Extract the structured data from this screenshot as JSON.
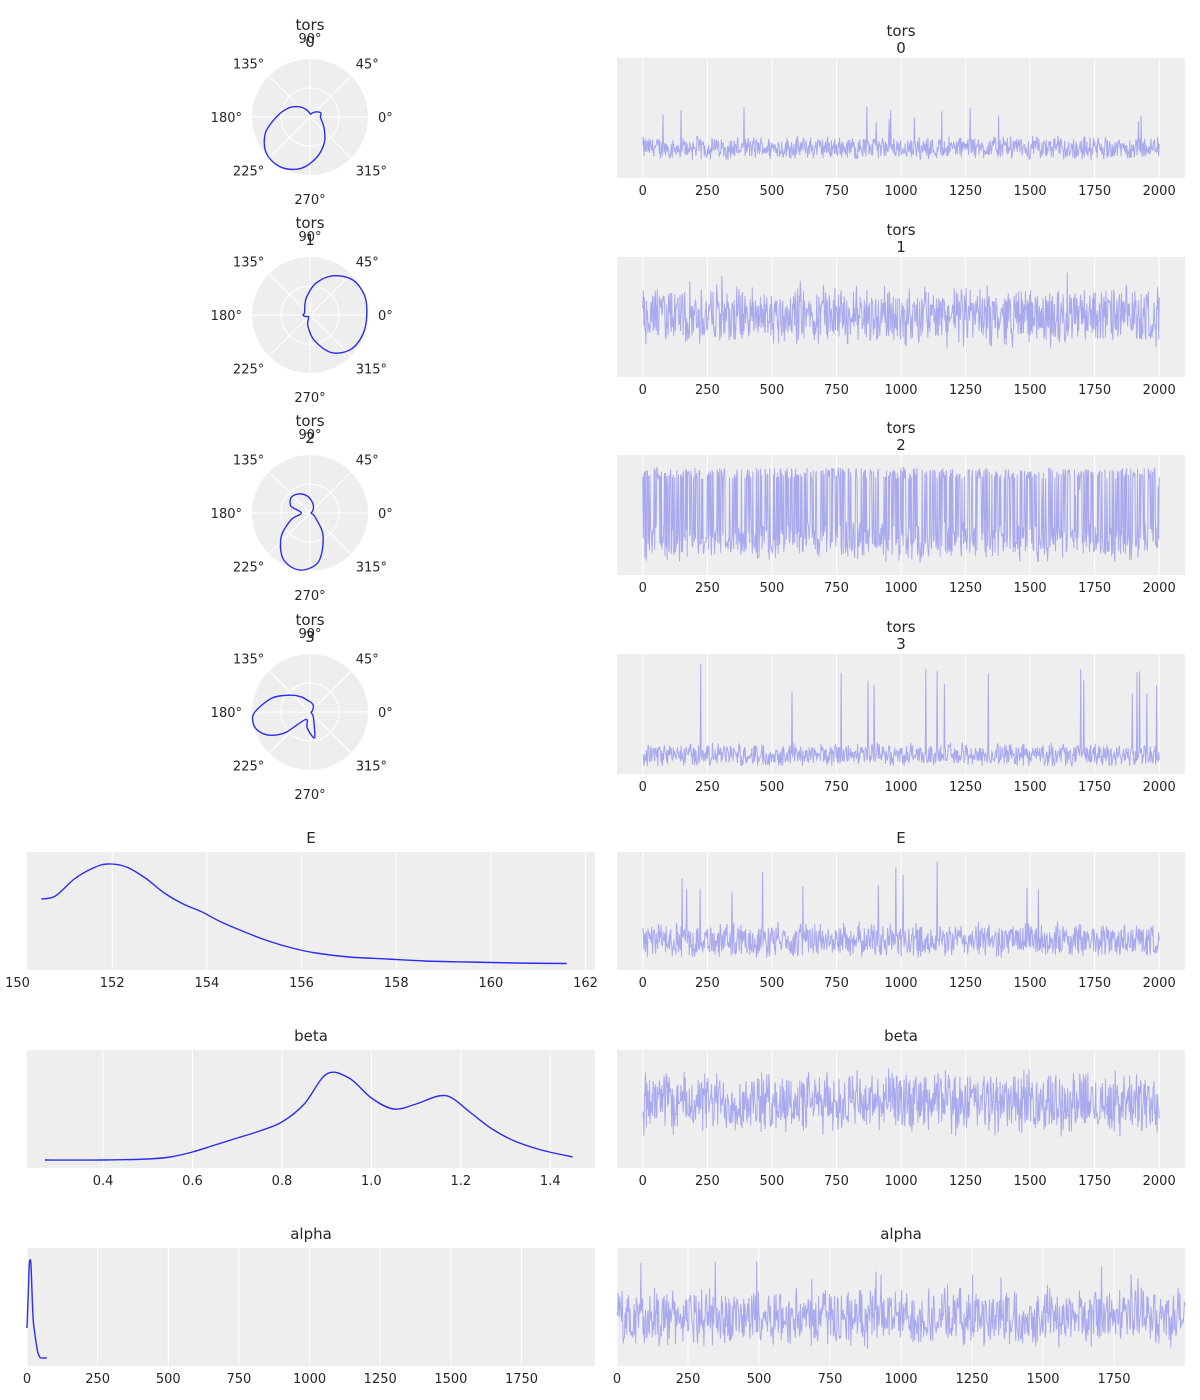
{
  "colors": {
    "background": "#eeeeee",
    "kde": "#2a2eec",
    "trace": "#a9aaee",
    "grid": "#ffffff",
    "text": "#262626"
  },
  "chart_data": [
    {
      "type": "polar-line",
      "title": "tors\n0",
      "angle_ticks": [
        "0°",
        "45°",
        "90°",
        "135°",
        "180°",
        "225°",
        "270°",
        "315°"
      ],
      "theta_deg": [
        0,
        20,
        40,
        60,
        80,
        100,
        120,
        140,
        160,
        180,
        200,
        220,
        240,
        260,
        280,
        300,
        320,
        340
      ],
      "r": [
        0.18,
        0.2,
        0.14,
        0.08,
        0.05,
        0.08,
        0.16,
        0.28,
        0.42,
        0.58,
        0.82,
        0.98,
        1.0,
        0.9,
        0.7,
        0.5,
        0.32,
        0.22
      ]
    },
    {
      "type": "polar-line",
      "title": "tors\n1",
      "angle_ticks": [
        "0°",
        "45°",
        "90°",
        "135°",
        "180°",
        "225°",
        "270°",
        "315°"
      ],
      "theta_deg": [
        0,
        20,
        40,
        60,
        80,
        100,
        120,
        140,
        160,
        180,
        200,
        220,
        240,
        260,
        280,
        300,
        320,
        340
      ],
      "r": [
        0.98,
        1.0,
        0.95,
        0.78,
        0.55,
        0.32,
        0.18,
        0.12,
        0.1,
        0.12,
        0.08,
        0.04,
        0.05,
        0.2,
        0.45,
        0.75,
        0.92,
        0.97
      ]
    },
    {
      "type": "polar-line",
      "title": "tors\n2",
      "angle_ticks": [
        "0°",
        "45°",
        "90°",
        "135°",
        "180°",
        "225°",
        "270°",
        "315°"
      ],
      "theta_deg": [
        0,
        20,
        40,
        60,
        80,
        100,
        120,
        140,
        160,
        180,
        200,
        220,
        240,
        260,
        280,
        300,
        320,
        340
      ],
      "r": [
        0.02,
        0.03,
        0.06,
        0.12,
        0.2,
        0.3,
        0.38,
        0.42,
        0.35,
        0.15,
        0.35,
        0.65,
        0.92,
        1.0,
        0.85,
        0.45,
        0.12,
        0.03
      ]
    },
    {
      "type": "polar-line",
      "title": "tors\n3",
      "angle_ticks": [
        "0°",
        "45°",
        "90°",
        "135°",
        "180°",
        "225°",
        "270°",
        "315°"
      ],
      "theta_deg": [
        0,
        20,
        40,
        60,
        80,
        100,
        120,
        140,
        160,
        180,
        190,
        200,
        210,
        220,
        240,
        260,
        280,
        300,
        320,
        340
      ],
      "r": [
        0.02,
        0.04,
        0.06,
        0.12,
        0.16,
        0.2,
        0.3,
        0.45,
        0.7,
        0.95,
        1.0,
        0.95,
        0.8,
        0.55,
        0.15,
        0.28,
        0.45,
        0.12,
        0.04,
        0.02
      ]
    },
    {
      "type": "line",
      "title": "E",
      "x": [
        150.5,
        150.8,
        151.2,
        151.6,
        151.9,
        152.3,
        152.7,
        153.1,
        153.5,
        153.9,
        154.3,
        154.8,
        155.3,
        155.8,
        156.3,
        157,
        157.8,
        158.6,
        159.5,
        160.5,
        161.6
      ],
      "y": [
        0.65,
        0.68,
        0.85,
        0.96,
        1.0,
        0.97,
        0.86,
        0.71,
        0.6,
        0.52,
        0.42,
        0.32,
        0.23,
        0.16,
        0.11,
        0.07,
        0.05,
        0.03,
        0.02,
        0.01,
        0.005
      ],
      "xticks": [
        150,
        152,
        154,
        156,
        158,
        160,
        162
      ],
      "xlim": [
        150.2,
        162.2
      ]
    },
    {
      "type": "line",
      "title": "beta",
      "x": [
        0.27,
        0.4,
        0.5,
        0.55,
        0.6,
        0.65,
        0.7,
        0.75,
        0.8,
        0.85,
        0.9,
        0.95,
        1.0,
        1.05,
        1.1,
        1.15,
        1.18,
        1.22,
        1.27,
        1.32,
        1.38,
        1.45
      ],
      "y": [
        0.02,
        0.02,
        0.03,
        0.05,
        0.1,
        0.17,
        0.24,
        0.31,
        0.4,
        0.58,
        0.88,
        0.84,
        0.64,
        0.53,
        0.58,
        0.66,
        0.64,
        0.5,
        0.33,
        0.21,
        0.12,
        0.05
      ],
      "xticks": [
        0.4,
        0.6,
        0.8,
        1.0,
        1.2,
        1.4
      ],
      "xticklabels": [
        "0.4",
        "0.6",
        "0.8",
        "1.0",
        "1.2",
        "1.4"
      ],
      "xlim": [
        0.23,
        1.5
      ]
    },
    {
      "type": "line",
      "title": "alpha",
      "x": [
        0,
        5,
        8,
        12,
        15,
        18,
        22,
        27,
        32,
        38,
        45,
        50,
        60,
        70
      ],
      "y": [
        0.32,
        0.7,
        0.95,
        1.0,
        0.9,
        0.65,
        0.4,
        0.28,
        0.18,
        0.08,
        0.03,
        0.02,
        0.02,
        0.02
      ],
      "xticks": [
        0,
        250,
        500,
        750,
        1000,
        1250,
        1500,
        1750
      ],
      "xlim": [
        0,
        2010
      ]
    }
  ],
  "traces": [
    {
      "title": "tors\n0",
      "xticks": [
        0,
        250,
        500,
        750,
        1000,
        1250,
        1500,
        1750,
        2000
      ],
      "xlim": [
        -100,
        2100
      ],
      "n": 2000,
      "base": 0.22,
      "noise": 0.12,
      "spikes": [
        0.6,
        0.95
      ]
    },
    {
      "title": "tors\n1",
      "xticks": [
        0,
        250,
        500,
        750,
        1000,
        1250,
        1500,
        1750,
        2000
      ],
      "xlim": [
        -100,
        2100
      ],
      "n": 2000,
      "base": 0.5,
      "noise": 0.3,
      "spikes": [
        0.9
      ]
    },
    {
      "title": "tors\n2",
      "xticks": [
        0,
        250,
        500,
        750,
        1000,
        1250,
        1500,
        1750,
        2000
      ],
      "xlim": [
        -100,
        2100
      ],
      "n": 2000,
      "base": 0.25,
      "noise": 0.2,
      "spikes": [
        0.9
      ]
    },
    {
      "title": "tors\n3",
      "xticks": [
        0,
        250,
        500,
        750,
        1000,
        1250,
        1500,
        1750,
        2000
      ],
      "xlim": [
        -100,
        2100
      ],
      "n": 2000,
      "base": 0.12,
      "noise": 0.12,
      "spikes": [
        0.95
      ]
    },
    {
      "title": "E",
      "xticks": [
        0,
        250,
        500,
        750,
        1000,
        1250,
        1500,
        1750,
        2000
      ],
      "xlim": [
        -100,
        2100
      ],
      "n": 2000,
      "base": 0.22,
      "noise": 0.18,
      "spikes": [
        0.95
      ]
    },
    {
      "title": "beta",
      "xticks": [
        0,
        250,
        500,
        750,
        1000,
        1250,
        1500,
        1750,
        2000
      ],
      "xlim": [
        -100,
        2100
      ],
      "n": 2000,
      "base": 0.55,
      "noise": 0.32,
      "spikes": [
        0.9
      ]
    },
    {
      "title": "alpha",
      "xticks": [
        0,
        250,
        500,
        750,
        1000,
        1250,
        1500,
        1750
      ],
      "xlim": [
        0,
        2000
      ],
      "n": 2000,
      "base": 0.4,
      "noise": 0.3,
      "spikes": [
        0.95
      ]
    }
  ]
}
